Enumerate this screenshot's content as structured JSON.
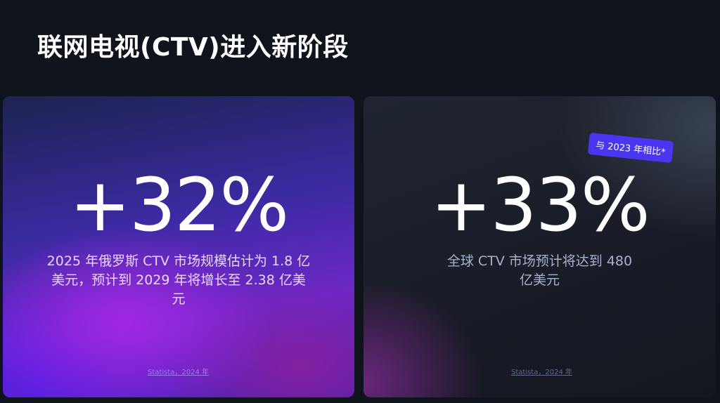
{
  "title": "联网电视(CTV)进入新阶段",
  "cards": [
    {
      "stat": "+32%",
      "description": "2025 年俄罗斯 CTV 市场规模估计为 1.8 亿美元，预计到 2029 年将增长至 2.38 亿美元",
      "source": "Statista，2024 年"
    },
    {
      "stat": "+33%",
      "badge": "与 2023 年相比*",
      "description": "全球 CTV 市场预计将达到 480 亿美元",
      "source": "Statista，2024 年"
    }
  ],
  "colors": {
    "background": "#0f131c",
    "badge": "#4a36f0"
  }
}
